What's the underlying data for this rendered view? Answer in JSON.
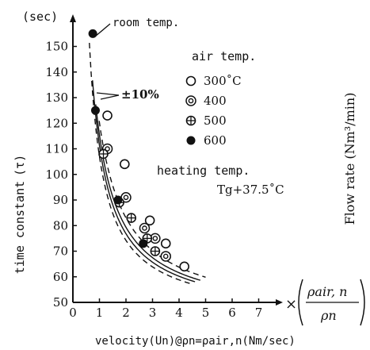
{
  "chart_data": {
    "type": "scatter",
    "y_unit": "(sec)",
    "ylabel_main": "time constant",
    "ylabel_sym": "(τ)",
    "xlabel": "velocity(Un)@ρn=ρair,n(Nm/sec)",
    "x_unit_factor": "×(ρair,n / ρn)",
    "right_label": "Flow rate (Nm³/min)",
    "annotation_room": "room temp.",
    "annotation_tol": "±10%",
    "annotation_heating": "heating temp.",
    "annotation_tg": "Tg+37.5˚C",
    "legend_title": "air temp.",
    "xlim": [
      0,
      8
    ],
    "ylim": [
      50,
      155
    ],
    "x_ticks": [
      0,
      1,
      2,
      3,
      4,
      5,
      6,
      7
    ],
    "y_ticks": [
      50,
      60,
      70,
      80,
      90,
      100,
      110,
      120,
      130,
      140,
      150
    ],
    "series": [
      {
        "name": "300˚C",
        "marker": "open",
        "points": [
          [
            1.3,
            123
          ],
          [
            1.95,
            104
          ],
          [
            2.9,
            82
          ],
          [
            3.5,
            73
          ],
          [
            4.2,
            64
          ]
        ]
      },
      {
        "name": "400",
        "marker": "double",
        "points": [
          [
            1.3,
            110
          ],
          [
            2.0,
            91
          ],
          [
            2.7,
            79
          ],
          [
            3.1,
            75
          ],
          [
            3.5,
            68
          ]
        ]
      },
      {
        "name": "500",
        "marker": "cross",
        "points": [
          [
            1.15,
            108
          ],
          [
            1.75,
            89
          ],
          [
            2.2,
            83
          ],
          [
            2.8,
            75
          ],
          [
            3.1,
            70
          ]
        ]
      },
      {
        "name": "600",
        "marker": "filled",
        "points": [
          [
            0.75,
            155
          ],
          [
            0.85,
            125
          ],
          [
            1.7,
            90
          ],
          [
            2.65,
            73
          ]
        ]
      }
    ]
  }
}
